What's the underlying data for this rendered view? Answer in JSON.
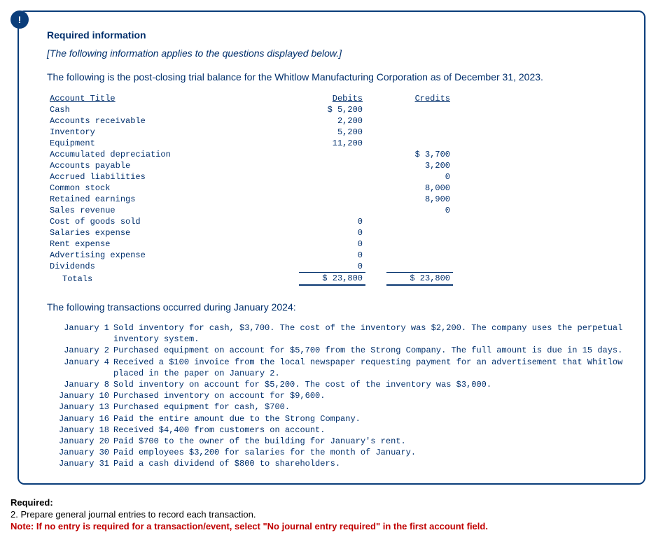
{
  "badge": "!",
  "card": {
    "title": "Required information",
    "italic": "[The following information applies to the questions displayed below.]",
    "intro": "The following is the post-closing trial balance for the Whitlow Manufacturing Corporation as of December 31, 2023.",
    "sub_intro": "The following transactions occurred during January 2024:"
  },
  "tb": {
    "headers": {
      "acct": "Account Title",
      "deb": "Debits",
      "cred": "Credits"
    },
    "rows": [
      {
        "a": "Cash",
        "d": "$ 5,200",
        "c": ""
      },
      {
        "a": "Accounts receivable",
        "d": "2,200",
        "c": ""
      },
      {
        "a": "Inventory",
        "d": "5,200",
        "c": ""
      },
      {
        "a": "Equipment",
        "d": "11,200",
        "c": ""
      },
      {
        "a": "Accumulated depreciation",
        "d": "",
        "c": "$ 3,700"
      },
      {
        "a": "Accounts payable",
        "d": "",
        "c": "3,200"
      },
      {
        "a": "Accrued liabilities",
        "d": "",
        "c": "0"
      },
      {
        "a": "Common stock",
        "d": "",
        "c": "8,000"
      },
      {
        "a": "Retained earnings",
        "d": "",
        "c": "8,900"
      },
      {
        "a": "Sales revenue",
        "d": "",
        "c": "0"
      },
      {
        "a": "Cost of goods sold",
        "d": "0",
        "c": ""
      },
      {
        "a": "Salaries expense",
        "d": "0",
        "c": ""
      },
      {
        "a": "Rent expense",
        "d": "0",
        "c": ""
      },
      {
        "a": "Advertising expense",
        "d": "0",
        "c": ""
      },
      {
        "a": "Dividends",
        "d": "0",
        "c": ""
      }
    ],
    "totals": {
      "a": "Totals",
      "d": "$ 23,800",
      "c": "$ 23,800"
    }
  },
  "trx": [
    {
      "date": "January 1",
      "text": "Sold inventory for cash, $3,700. The cost of the inventory was $2,200. The company uses the perpetual inventory system."
    },
    {
      "date": "January 2",
      "text": "Purchased equipment on account for $5,700 from the Strong Company. The full amount is due in 15 days."
    },
    {
      "date": "January 4",
      "text": "Received a $100 invoice from the local newspaper requesting payment for an advertisement that Whitlow placed in the paper on January 2."
    },
    {
      "date": "January 8",
      "text": "Sold inventory on account for $5,200. The cost of the inventory was $3,000."
    },
    {
      "date": "January 10",
      "text": "Purchased inventory on account for $9,600."
    },
    {
      "date": "January 13",
      "text": "Purchased equipment for cash, $700."
    },
    {
      "date": "January 16",
      "text": "Paid the entire amount due to the Strong Company."
    },
    {
      "date": "January 18",
      "text": "Received $4,400 from customers on account."
    },
    {
      "date": "January 20",
      "text": "Paid $700 to the owner of the building for January's rent."
    },
    {
      "date": "January 30",
      "text": "Paid employees $3,200 for salaries for the month of January."
    },
    {
      "date": "January 31",
      "text": "Paid a cash dividend of $800 to shareholders."
    }
  ],
  "bottom": {
    "req_label": "Required:",
    "req_line": "2. Prepare general journal entries to record each transaction.",
    "note_prefix": "Note: If no entry is required for a transaction/event, select \"No journal entry required\" in the first account field."
  }
}
